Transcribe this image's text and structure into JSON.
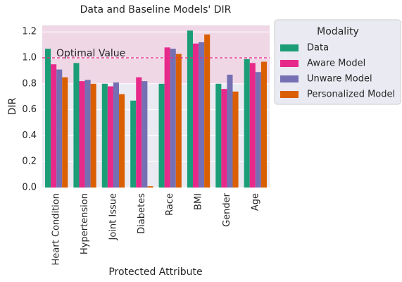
{
  "chart_data": {
    "type": "bar",
    "title": "Data and Baseline Models' DIR",
    "xlabel": "Protected Attribute",
    "ylabel": "DIR",
    "categories": [
      "Heart Condition",
      "Hypertension",
      "Joint Issue",
      "Diabetes",
      "Race",
      "BMI",
      "Gender",
      "Age"
    ],
    "series": [
      {
        "name": "Data",
        "color": "#1b9e77",
        "values": [
          1.07,
          0.96,
          0.8,
          0.67,
          0.8,
          1.21,
          0.8,
          0.99
        ]
      },
      {
        "name": "Aware Model",
        "color": "#e7298a",
        "values": [
          0.95,
          0.82,
          0.78,
          0.85,
          1.08,
          1.11,
          0.76,
          0.96
        ]
      },
      {
        "name": "Unware Model",
        "color": "#7570b3",
        "values": [
          0.91,
          0.83,
          0.81,
          0.82,
          1.07,
          1.12,
          0.87,
          0.89
        ]
      },
      {
        "name": "Personalized Model",
        "color": "#d95f02",
        "values": [
          0.85,
          0.8,
          0.72,
          0.01,
          1.03,
          1.18,
          0.74,
          0.97
        ]
      }
    ],
    "legend_title": "Modality",
    "legend": "outside right",
    "ylim": [
      0,
      1.25
    ],
    "yticks": [
      {
        "value": 0,
        "label": "0.0"
      },
      {
        "value": 0.2,
        "label": "0.2"
      },
      {
        "value": 0.4,
        "label": "0.4"
      },
      {
        "value": 0.6,
        "label": "0.6"
      },
      {
        "value": 0.8,
        "label": "0.8"
      },
      {
        "value": 1.0,
        "label": "1.0"
      },
      {
        "value": 1.2,
        "label": "1.2"
      }
    ],
    "grid": true,
    "reference_line": {
      "value": 1.0,
      "label": "Optimal Value",
      "color": "#e7298a"
    },
    "shaded_span": {
      "range": [
        0.8,
        1.25
      ],
      "color": "#f4c6dc"
    }
  }
}
